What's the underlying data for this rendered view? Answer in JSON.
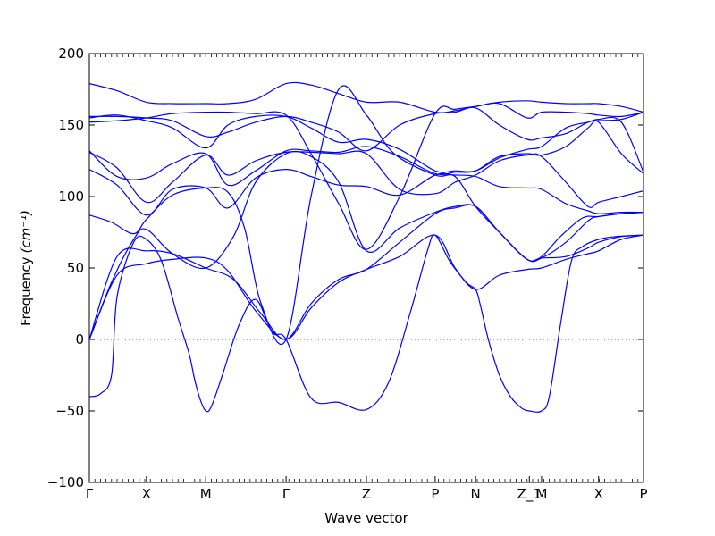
{
  "chart_data": {
    "type": "line",
    "title": "",
    "xlabel": "Wave vector",
    "ylabel": "Frequency",
    "ylabel_unit": "(cm⁻¹)",
    "ylim": [
      -100,
      200
    ],
    "yticks": [
      -100,
      -50,
      0,
      50,
      100,
      150,
      200
    ],
    "ytick_labels": [
      "−100",
      "−50",
      "0",
      "50",
      "100",
      "150",
      "200"
    ],
    "xlim": [
      0,
      1
    ],
    "high_symmetry_points": [
      {
        "label": "Γ",
        "x": 0.0
      },
      {
        "label": "X",
        "x": 0.103
      },
      {
        "label": "M",
        "x": 0.21
      },
      {
        "label": "Γ",
        "x": 0.355
      },
      {
        "label": "Z",
        "x": 0.5
      },
      {
        "label": "P",
        "x": 0.624
      },
      {
        "label": "N",
        "x": 0.697
      },
      {
        "label": "Z_1",
        "x": 0.794
      },
      {
        "label": "M",
        "x": 0.816
      },
      {
        "label": "X",
        "x": 0.919
      },
      {
        "label": "P",
        "x": 1.0
      }
    ],
    "zero_reference": {
      "y": 0,
      "style": "dotted"
    },
    "grid": false,
    "legend": "none",
    "color": "#0000ff",
    "series": [
      {
        "x": [
          0,
          0.02,
          0.04,
          0.05,
          0.08,
          0.103,
          0.13,
          0.16,
          0.18,
          0.19,
          0.2,
          0.21,
          0.22,
          0.24,
          0.27,
          0.3,
          0.33,
          0.355,
          0.4,
          0.45,
          0.5,
          0.54,
          0.58,
          0.61,
          0.624,
          0.65,
          0.68,
          0.697,
          0.705,
          0.72,
          0.74,
          0.76,
          0.78,
          0.794,
          0.816,
          0.83,
          0.85,
          0.87,
          0.89,
          0.919,
          0.95,
          1.0
        ],
        "y": [
          -40,
          -38,
          -25,
          30,
          68,
          70,
          55,
          15,
          -10,
          -28,
          -42,
          -50,
          -47,
          -25,
          10,
          28,
          5,
          0,
          -41,
          -44,
          -49,
          -30,
          20,
          62,
          73,
          55,
          40,
          35,
          25,
          0,
          -25,
          -40,
          -48,
          -50,
          -50,
          -40,
          10,
          55,
          65,
          70,
          72,
          73
        ]
      },
      {
        "x": [
          0,
          0.05,
          0.103,
          0.15,
          0.21,
          0.25,
          0.3,
          0.355,
          0.4,
          0.45,
          0.5,
          0.56,
          0.624,
          0.66,
          0.697,
          0.74,
          0.79,
          0.816,
          0.86,
          0.9,
          0.919,
          0.96,
          1.0
        ],
        "y": [
          0,
          45,
          53,
          56,
          57,
          48,
          20,
          0,
          22,
          40,
          49,
          58,
          73,
          50,
          35,
          45,
          49,
          50,
          56,
          60,
          62,
          70,
          73
        ]
      },
      {
        "x": [
          0,
          0.05,
          0.103,
          0.15,
          0.21,
          0.26,
          0.31,
          0.355,
          0.4,
          0.45,
          0.5,
          0.56,
          0.624,
          0.66,
          0.697,
          0.74,
          0.79,
          0.816,
          0.86,
          0.9,
          0.919,
          0.96,
          1.0
        ],
        "y": [
          0,
          58,
          62,
          60,
          50,
          42,
          18,
          0,
          25,
          42,
          49,
          68,
          88,
          92,
          93,
          75,
          56,
          57,
          58,
          64,
          68,
          72,
          73
        ]
      },
      {
        "x": [
          0,
          0.04,
          0.08,
          0.103,
          0.15,
          0.21,
          0.26,
          0.3,
          0.355,
          0.4,
          0.45,
          0.5,
          0.56,
          0.624,
          0.66,
          0.697,
          0.74,
          0.79,
          0.816,
          0.86,
          0.9,
          0.919,
          0.96,
          1.0
        ],
        "y": [
          0,
          40,
          70,
          77,
          60,
          50,
          72,
          110,
          130,
          128,
          110,
          62,
          78,
          89,
          93,
          93,
          75,
          56,
          57,
          68,
          83,
          86,
          88,
          89
        ]
      },
      {
        "x": [
          0,
          0.04,
          0.08,
          0.103,
          0.15,
          0.21,
          0.25,
          0.28,
          0.31,
          0.355,
          0.4,
          0.45,
          0.5,
          0.55,
          0.624,
          0.66,
          0.697,
          0.74,
          0.79,
          0.816,
          0.85,
          0.89,
          0.919,
          0.96,
          1.0
        ],
        "y": [
          87,
          82,
          74,
          84,
          101,
          106,
          103,
          78,
          25,
          0,
          100,
          175,
          157,
          130,
          115,
          114,
          93,
          75,
          56,
          58,
          72,
          85,
          86,
          88,
          89
        ]
      },
      {
        "x": [
          0,
          0.05,
          0.103,
          0.15,
          0.21,
          0.25,
          0.3,
          0.355,
          0.4,
          0.45,
          0.5,
          0.56,
          0.624,
          0.66,
          0.697,
          0.74,
          0.79,
          0.816,
          0.86,
          0.9,
          0.919,
          0.96,
          1.0
        ],
        "y": [
          119,
          108,
          87,
          105,
          106,
          92,
          113,
          119,
          114,
          108,
          107,
          101,
          115,
          115,
          114,
          107,
          106,
          105,
          95,
          90,
          88,
          89,
          89
        ]
      },
      {
        "x": [
          0,
          0.05,
          0.103,
          0.15,
          0.21,
          0.25,
          0.3,
          0.355,
          0.4,
          0.45,
          0.5,
          0.56,
          0.624,
          0.66,
          0.697,
          0.74,
          0.79,
          0.816,
          0.86,
          0.9,
          0.919,
          0.96,
          1.0
        ],
        "y": [
          131,
          120,
          96,
          110,
          129,
          115,
          125,
          131,
          131,
          130,
          130,
          105,
          102,
          110,
          115,
          125,
          129,
          128,
          110,
          93,
          96,
          100,
          104
        ]
      },
      {
        "x": [
          0,
          0.05,
          0.103,
          0.15,
          0.21,
          0.25,
          0.3,
          0.355,
          0.4,
          0.45,
          0.5,
          0.56,
          0.624,
          0.66,
          0.697,
          0.74,
          0.79,
          0.816,
          0.86,
          0.9,
          0.919,
          0.96,
          1.0
        ],
        "y": [
          132,
          114,
          113,
          123,
          130,
          108,
          118,
          132,
          132,
          131,
          135,
          128,
          116,
          117,
          118,
          128,
          130,
          129,
          135,
          148,
          152,
          130,
          116
        ]
      },
      {
        "x": [
          0,
          0.05,
          0.103,
          0.15,
          0.21,
          0.25,
          0.3,
          0.355,
          0.4,
          0.45,
          0.5,
          0.56,
          0.624,
          0.66,
          0.697,
          0.74,
          0.79,
          0.816,
          0.86,
          0.9,
          0.919,
          0.96,
          1.0
        ],
        "y": [
          155,
          157,
          153,
          148,
          134,
          150,
          156,
          156,
          148,
          138,
          140,
          133,
          118,
          118,
          118,
          127,
          133,
          135,
          148,
          152,
          154,
          152,
          117
        ]
      },
      {
        "x": [
          0,
          0.05,
          0.103,
          0.15,
          0.21,
          0.25,
          0.3,
          0.355,
          0.4,
          0.45,
          0.5,
          0.56,
          0.624,
          0.66,
          0.697,
          0.74,
          0.79,
          0.816,
          0.86,
          0.9,
          0.919,
          0.96,
          1.0
        ],
        "y": [
          156,
          156,
          155,
          153,
          142,
          145,
          152,
          156,
          152,
          145,
          132,
          150,
          158,
          159,
          162,
          150,
          140,
          141,
          144,
          152,
          153,
          154,
          159
        ]
      },
      {
        "x": [
          0,
          0.05,
          0.103,
          0.15,
          0.21,
          0.25,
          0.3,
          0.355,
          0.4,
          0.45,
          0.5,
          0.56,
          0.624,
          0.66,
          0.697,
          0.74,
          0.79,
          0.816,
          0.86,
          0.9,
          0.919,
          0.96,
          1.0
        ],
        "y": [
          152,
          153,
          155,
          158,
          159,
          159,
          158,
          157,
          130,
          95,
          63,
          100,
          158,
          161,
          163,
          165,
          155,
          159,
          159,
          158,
          157,
          156,
          159
        ]
      },
      {
        "x": [
          0,
          0.05,
          0.103,
          0.15,
          0.21,
          0.25,
          0.3,
          0.355,
          0.4,
          0.45,
          0.5,
          0.56,
          0.624,
          0.66,
          0.697,
          0.74,
          0.79,
          0.816,
          0.86,
          0.9,
          0.919,
          0.96,
          1.0
        ],
        "y": [
          179,
          174,
          166,
          165,
          165,
          165,
          168,
          179,
          178,
          172,
          166,
          166,
          159,
          160,
          163,
          166,
          167,
          166,
          165,
          165,
          165,
          163,
          159
        ]
      }
    ]
  }
}
